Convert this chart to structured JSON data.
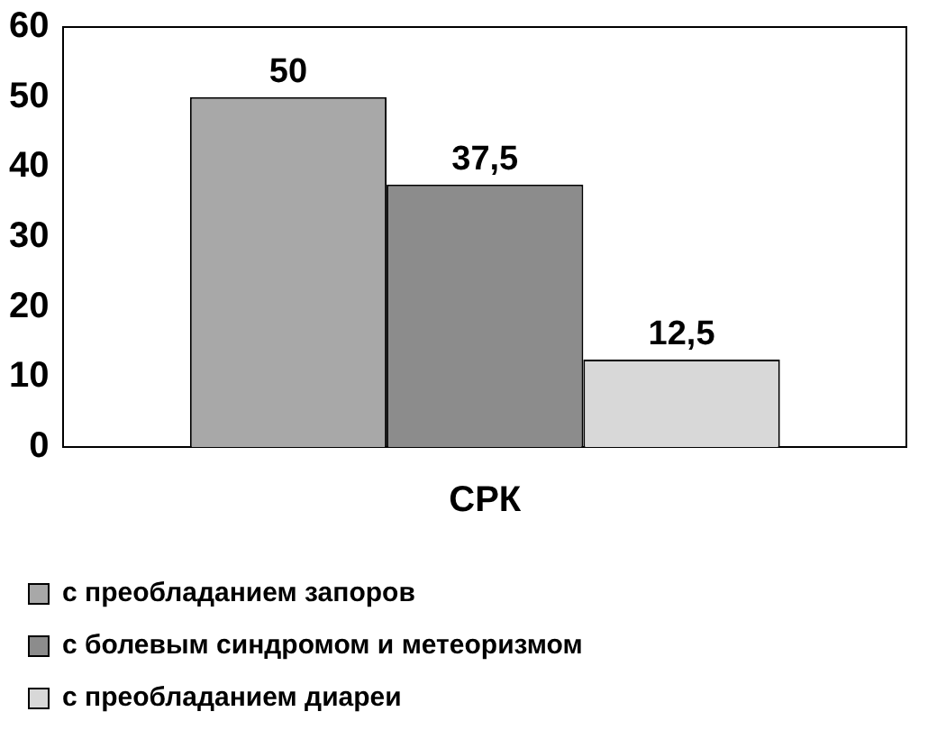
{
  "chart_data": {
    "type": "bar",
    "categories": [
      "СРК"
    ],
    "series": [
      {
        "name": "с преобладанием запоров",
        "color": "#a8a8a8",
        "values": [
          50
        ],
        "value_labels": [
          "50"
        ]
      },
      {
        "name": "с болевым синдромом и метеоризмом",
        "color": "#8c8c8c",
        "values": [
          37.5
        ],
        "value_labels": [
          "37,5"
        ]
      },
      {
        "name": "с преобладанием диареи",
        "color": "#d8d8d8",
        "values": [
          12.5
        ],
        "value_labels": [
          "12,5"
        ]
      }
    ],
    "ylim": [
      0,
      60
    ],
    "yticks": [
      0,
      10,
      20,
      30,
      40,
      50,
      60
    ],
    "grid": false,
    "legend": "bottom"
  }
}
